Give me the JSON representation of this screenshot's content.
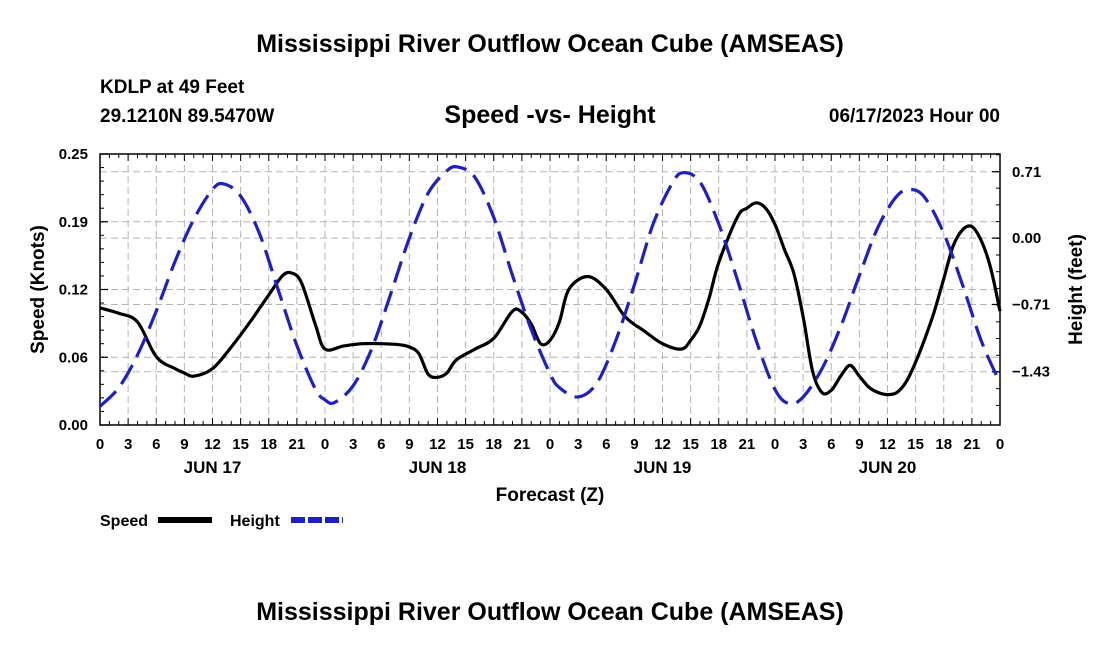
{
  "header": {
    "title": "Mississippi River Outflow Ocean Cube (AMSEAS)",
    "station": "KDLP at 49 Feet",
    "coords": "29.1210N  89.5470W",
    "subtitle": "Speed -vs- Height",
    "datetime": "06/17/2023 Hour 00"
  },
  "footer": {
    "title": "Mississippi River Outflow Ocean Cube (AMSEAS)"
  },
  "chart_data": {
    "type": "line",
    "title": "Speed -vs- Height",
    "xlabel": "Forecast (Z)",
    "ylabel": "Speed (Knots)",
    "y2label": "Height (feet)",
    "x_unit": "hours from 06/17/2023 00Z",
    "x_range": [
      0,
      96
    ],
    "x_ticks": [
      0,
      3,
      6,
      9,
      12,
      15,
      18,
      21,
      24,
      27,
      30,
      33,
      36,
      39,
      42,
      45,
      48,
      51,
      54,
      57,
      60,
      63,
      66,
      69,
      72,
      75,
      78,
      81,
      84,
      87,
      90,
      93,
      96
    ],
    "x_tick_labels": [
      "0",
      "3",
      "6",
      "9",
      "12",
      "15",
      "18",
      "21",
      "0",
      "3",
      "6",
      "9",
      "12",
      "15",
      "18",
      "21",
      "0",
      "3",
      "6",
      "9",
      "12",
      "15",
      "18",
      "21",
      "0",
      "3",
      "6",
      "9",
      "12",
      "15",
      "18",
      "21",
      "0"
    ],
    "day_labels": [
      {
        "x": 12,
        "label": "JUN 17"
      },
      {
        "x": 36,
        "label": "JUN 18"
      },
      {
        "x": 60,
        "label": "JUN 19"
      },
      {
        "x": 84,
        "label": "JUN 20"
      }
    ],
    "y_range": [
      0,
      0.25
    ],
    "y_ticks": [
      0.0,
      0.0625,
      0.125,
      0.1875,
      0.25
    ],
    "y_tick_labels": [
      "0.00",
      "0.06",
      "0.12",
      "0.19",
      "0.25"
    ],
    "y2_range": [
      -2.0,
      0.9
    ],
    "y2_ticks": [
      -1.43,
      -0.71,
      0.0,
      0.71
    ],
    "y2_tick_labels": [
      "−1.43",
      "−0.71",
      "0.00",
      "0.71"
    ],
    "grid": true,
    "legend": "bottom-left",
    "series": [
      {
        "name": "Speed",
        "axis": "left",
        "color": "#000000",
        "style": "solid",
        "x": [
          0,
          2,
          4,
          6,
          8,
          9,
          10,
          12,
          14,
          16,
          18,
          19.5,
          20.5,
          21.5,
          23,
          24,
          26,
          28,
          30,
          32,
          33,
          34,
          35,
          36,
          37,
          38,
          40,
          42,
          44,
          45,
          46,
          47,
          48,
          49,
          50,
          52,
          54,
          56,
          58,
          60,
          62,
          63,
          64,
          65,
          66,
          68,
          69,
          70,
          71,
          72,
          73,
          74,
          75,
          76,
          77,
          78,
          79,
          80,
          81,
          82,
          83,
          84,
          85,
          86,
          87,
          88,
          89,
          90,
          91,
          92,
          93,
          94,
          95,
          96
        ],
        "values": [
          0.108,
          0.103,
          0.095,
          0.063,
          0.052,
          0.048,
          0.045,
          0.052,
          0.072,
          0.095,
          0.12,
          0.138,
          0.14,
          0.131,
          0.092,
          0.07,
          0.073,
          0.075,
          0.075,
          0.074,
          0.072,
          0.066,
          0.047,
          0.044,
          0.048,
          0.06,
          0.07,
          0.08,
          0.105,
          0.104,
          0.093,
          0.075,
          0.078,
          0.095,
          0.125,
          0.137,
          0.125,
          0.1,
          0.087,
          0.075,
          0.07,
          0.078,
          0.092,
          0.118,
          0.15,
          0.192,
          0.2,
          0.205,
          0.2,
          0.185,
          0.162,
          0.14,
          0.1,
          0.05,
          0.03,
          0.032,
          0.045,
          0.055,
          0.045,
          0.035,
          0.03,
          0.028,
          0.03,
          0.04,
          0.058,
          0.08,
          0.105,
          0.135,
          0.165,
          0.18,
          0.183,
          0.17,
          0.145,
          0.105
        ]
      },
      {
        "name": "Height",
        "axis": "right",
        "color": "#1f1fc8",
        "style": "dashed",
        "x": [
          0,
          2,
          4,
          6,
          8,
          10,
          12,
          13.2,
          15,
          17,
          19,
          21,
          23,
          24,
          25,
          27,
          29,
          31,
          33,
          35,
          37,
          38.2,
          40,
          42,
          44,
          46,
          48,
          49,
          51,
          53,
          55,
          57,
          59,
          61,
          62.2,
          64,
          66,
          68,
          70,
          72,
          73.5,
          75,
          77,
          79,
          81,
          83,
          85,
          86.5,
          88,
          90,
          92,
          94,
          96
        ],
        "values": [
          -1.8,
          -1.6,
          -1.25,
          -0.78,
          -0.25,
          0.2,
          0.52,
          0.58,
          0.45,
          0.05,
          -0.55,
          -1.15,
          -1.62,
          -1.73,
          -1.76,
          -1.58,
          -1.18,
          -0.6,
          0.0,
          0.48,
          0.72,
          0.76,
          0.65,
          0.22,
          -0.4,
          -0.98,
          -1.45,
          -1.6,
          -1.7,
          -1.55,
          -1.1,
          -0.5,
          0.15,
          0.58,
          0.7,
          0.6,
          0.15,
          -0.45,
          -1.1,
          -1.62,
          -1.77,
          -1.7,
          -1.4,
          -0.95,
          -0.4,
          0.12,
          0.45,
          0.52,
          0.43,
          0.05,
          -0.5,
          -1.1,
          -1.55
        ]
      }
    ]
  }
}
